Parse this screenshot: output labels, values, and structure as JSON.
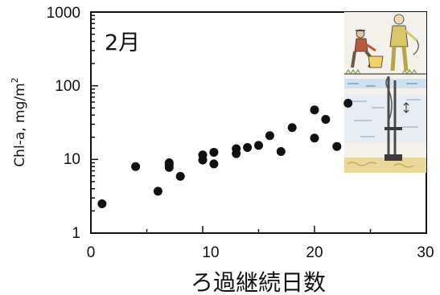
{
  "chart_data": {
    "type": "scatter",
    "title": "2月",
    "xlabel": "ろ過継続日数",
    "ylabel": "Chl-a,  mg/m",
    "ylabel_superscript": "2",
    "xlim": [
      0,
      30
    ],
    "ylim": [
      1,
      1000
    ],
    "y_scale": "log",
    "grid": false,
    "x_ticks": [
      "0",
      "10",
      "20",
      "30"
    ],
    "y_ticks": [
      "1",
      "10",
      "100",
      "1000"
    ],
    "marker_color": "#111111",
    "points": [
      {
        "x": 1,
        "y": 2.5
      },
      {
        "x": 4,
        "y": 8.0
      },
      {
        "x": 6,
        "y": 3.7
      },
      {
        "x": 7,
        "y": 7.8
      },
      {
        "x": 7,
        "y": 8.5
      },
      {
        "x": 7,
        "y": 9.0
      },
      {
        "x": 8,
        "y": 5.9
      },
      {
        "x": 10,
        "y": 9.8
      },
      {
        "x": 10,
        "y": 11.5
      },
      {
        "x": 11,
        "y": 8.7
      },
      {
        "x": 11,
        "y": 12.5
      },
      {
        "x": 13,
        "y": 12.0
      },
      {
        "x": 13,
        "y": 14.0
      },
      {
        "x": 14,
        "y": 14.5
      },
      {
        "x": 15,
        "y": 15.5
      },
      {
        "x": 16,
        "y": 21.0
      },
      {
        "x": 17,
        "y": 12.8
      },
      {
        "x": 18,
        "y": 27.0
      },
      {
        "x": 20,
        "y": 19.5
      },
      {
        "x": 20,
        "y": 47.0
      },
      {
        "x": 21,
        "y": 35.0
      },
      {
        "x": 22,
        "y": 15.0
      },
      {
        "x": 23,
        "y": 58.0
      }
    ]
  }
}
